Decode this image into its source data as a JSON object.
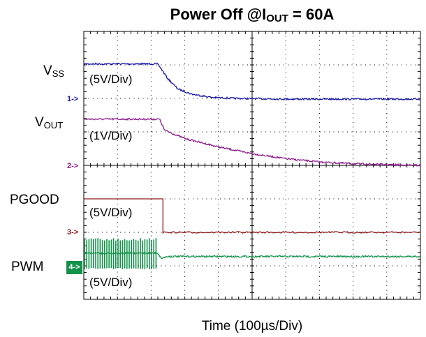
{
  "title": {
    "prefix": "Power Off @I",
    "sub": "OUT",
    "suffix": " = 60A"
  },
  "xlabel": "Time (100µs/Div)",
  "colors": {
    "ch1": "#1a1aa6",
    "ch2": "#8b1a8b",
    "ch3": "#8b1a1a",
    "ch4": "#12924a",
    "grid": "#000000"
  },
  "channels": [
    {
      "marker": "1->",
      "label_main": "V",
      "label_sub": "SS",
      "scale": "(5V/Div)"
    },
    {
      "marker": "2->",
      "label_main": "V",
      "label_sub": "OUT",
      "scale": "(1V/Div)"
    },
    {
      "marker": "3->",
      "label_main": "PGOOD",
      "label_sub": "",
      "scale": "(5V/Div)"
    },
    {
      "marker": "4->",
      "label_main": "PWM",
      "label_sub": "",
      "scale": "(5V/Div)"
    }
  ],
  "chart_data": {
    "type": "line",
    "title": "Power Off @IOUT = 60A",
    "xlabel": "Time (100µs/Div)",
    "x_divisions": 10,
    "y_divisions": 8,
    "xlim": [
      0,
      10
    ],
    "grid": true,
    "series": [
      {
        "name": "VSS",
        "scale": "5V/Div",
        "x": [
          0,
          2.2,
          2.5,
          2.8,
          3.2,
          3.8,
          4.5,
          6,
          10
        ],
        "y": [
          1.05,
          1.05,
          0.6,
          0.3,
          0.15,
          0.05,
          0.02,
          0.0,
          0.0
        ]
      },
      {
        "name": "VOUT",
        "scale": "1V/Div",
        "x": [
          0,
          2.25,
          2.4,
          3,
          4,
          5,
          6,
          7,
          8,
          9,
          10
        ],
        "y": [
          1.38,
          1.38,
          1.05,
          0.8,
          0.55,
          0.35,
          0.2,
          0.1,
          0.05,
          0.02,
          0.0
        ]
      },
      {
        "name": "PGOOD",
        "scale": "5V/Div",
        "x": [
          0,
          2.35,
          2.35,
          10
        ],
        "y": [
          1.0,
          1.0,
          0.0,
          0.0
        ]
      },
      {
        "name": "PWM",
        "scale": "5V/Div",
        "x": [
          0,
          2.2,
          2.3,
          2.5,
          10
        ],
        "y": [
          0.4,
          0.4,
          0.25,
          0.3,
          0.3
        ]
      }
    ]
  }
}
